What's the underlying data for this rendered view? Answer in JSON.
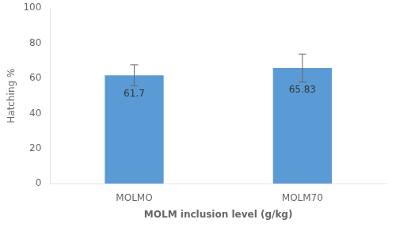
{
  "chart_data": {
    "type": "bar",
    "categories": [
      "MOLMO",
      "MOLM70"
    ],
    "values": [
      61.7,
      65.83
    ],
    "errors": [
      6.0,
      8.0
    ],
    "color": "#5B9BD5",
    "xlabel": "MOLM inclusion level (g/kg)",
    "ylabel": "Hatching %",
    "ylim": [
      0,
      100
    ],
    "yticks": [
      0,
      20,
      40,
      60,
      80,
      100
    ],
    "data_labels": true,
    "grid": false
  }
}
